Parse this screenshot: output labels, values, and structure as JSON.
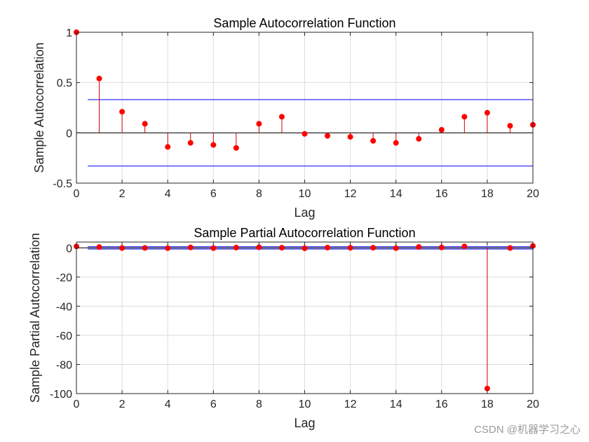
{
  "chart_data": [
    {
      "type": "stem",
      "title": "Sample Autocorrelation Function",
      "xlabel": "Lag",
      "ylabel": "Sample Autocorrelation",
      "xlim": [
        0,
        20
      ],
      "ylim": [
        -0.5,
        1
      ],
      "xticks": [
        0,
        2,
        4,
        6,
        8,
        10,
        12,
        14,
        16,
        18,
        20
      ],
      "yticks": [
        -0.5,
        0,
        0.5,
        1
      ],
      "ytick_labels": [
        "-0.5",
        "0",
        "0.5",
        "1"
      ],
      "grid": true,
      "x": [
        0,
        1,
        2,
        3,
        4,
        5,
        6,
        7,
        8,
        9,
        10,
        11,
        12,
        13,
        14,
        15,
        16,
        17,
        18,
        19,
        20
      ],
      "values": [
        1,
        0.54,
        0.21,
        0.09,
        -0.14,
        -0.1,
        -0.12,
        -0.15,
        0.09,
        0.16,
        -0.01,
        -0.03,
        -0.04,
        -0.08,
        -0.1,
        -0.06,
        0.03,
        0.16,
        0.2,
        0.07,
        0.08
      ],
      "confidence_bounds": [
        0.33,
        -0.33
      ],
      "bounds_x_range": [
        0.5,
        20
      ],
      "marker_color": "#ff0000",
      "stem_color": "#d40000",
      "bound_color": "#3232ff"
    },
    {
      "type": "stem",
      "title": "Sample Partial Autocorrelation Function",
      "xlabel": "Lag",
      "ylabel": "Sample Partial Autocorrelation",
      "xlim": [
        0,
        20
      ],
      "ylim": [
        -100,
        4
      ],
      "xticks": [
        0,
        2,
        4,
        6,
        8,
        10,
        12,
        14,
        16,
        18,
        20
      ],
      "yticks": [
        -100,
        -80,
        -60,
        -40,
        -20,
        0
      ],
      "ytick_labels": [
        "-100",
        "-80",
        "-60",
        "-40",
        "-20",
        "0"
      ],
      "grid": true,
      "x": [
        0,
        1,
        2,
        3,
        4,
        5,
        6,
        7,
        8,
        9,
        10,
        11,
        12,
        13,
        14,
        15,
        16,
        17,
        18,
        19,
        20
      ],
      "values": [
        1,
        0.54,
        -0.1,
        -0.05,
        -0.2,
        0.3,
        -0.15,
        0.2,
        0.4,
        0.1,
        -0.3,
        0.2,
        0.05,
        0.1,
        -0.2,
        0.6,
        0.3,
        1.0,
        -96.5,
        -0.1,
        1.3
      ],
      "confidence_bounds": [
        0.8,
        -0.8
      ],
      "bounds_x_range": [
        0.5,
        20
      ],
      "marker_color": "#ff0000",
      "stem_color": "#d40000",
      "bound_color": "#3232ff"
    }
  ],
  "watermark": "CSDN @机器学习之心"
}
